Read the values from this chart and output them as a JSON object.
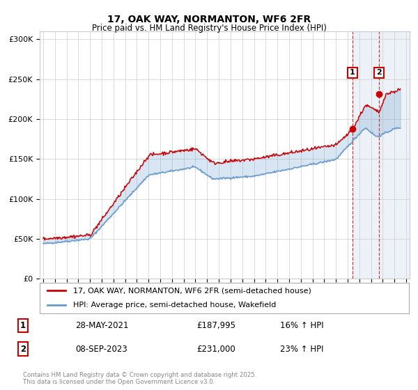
{
  "title": "17, OAK WAY, NORMANTON, WF6 2FR",
  "subtitle": "Price paid vs. HM Land Registry's House Price Index (HPI)",
  "ylabel_ticks": [
    "£0",
    "£50K",
    "£100K",
    "£150K",
    "£200K",
    "£250K",
    "£300K"
  ],
  "ytick_values": [
    0,
    50000,
    100000,
    150000,
    200000,
    250000,
    300000
  ],
  "ylim": [
    0,
    310000
  ],
  "xlim_start": 1995,
  "xlim_end": 2026,
  "legend_line1": "17, OAK WAY, NORMANTON, WF6 2FR (semi-detached house)",
  "legend_line2": "HPI: Average price, semi-detached house, Wakefield",
  "sale1_label": "1",
  "sale1_date": "28-MAY-2021",
  "sale1_price": "£187,995",
  "sale1_hpi": "16% ↑ HPI",
  "sale2_label": "2",
  "sale2_date": "08-SEP-2023",
  "sale2_price": "£231,000",
  "sale2_hpi": "23% ↑ HPI",
  "copyright": "Contains HM Land Registry data © Crown copyright and database right 2025.\nThis data is licensed under the Open Government Licence v3.0.",
  "red_color": "#cc0000",
  "blue_color": "#6699cc",
  "grid_color": "#cccccc",
  "background_color": "#ffffff",
  "sale1_x": 2021.42,
  "sale1_y": 187995,
  "sale2_x": 2023.69,
  "sale2_y": 231000,
  "future_vline1": 2021.42,
  "future_vline2": 2023.69,
  "future_start": 2021.42
}
